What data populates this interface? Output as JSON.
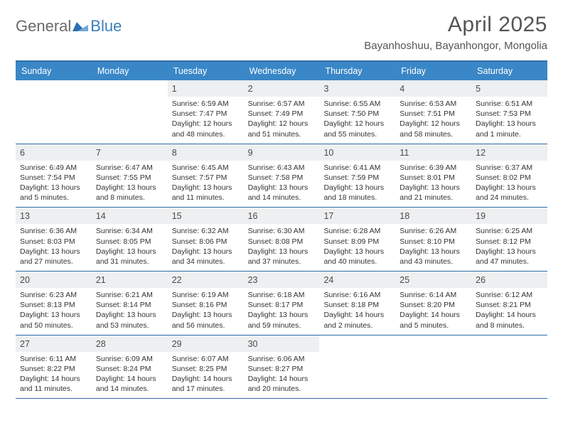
{
  "brand": {
    "word1": "General",
    "word2": "Blue",
    "tri_color": "#2a6fb0"
  },
  "title": "April 2025",
  "location": "Bayanhoshuu, Bayanhongor, Mongolia",
  "colors": {
    "header_bar": "#3a87c7",
    "header_text": "#ffffff",
    "rule": "#2f6fa8",
    "daynum_bg": "#edeff1",
    "body_text": "#333333",
    "title_text": "#555555",
    "logo_gray": "#6a6a6a",
    "logo_blue": "#3a7fbf"
  },
  "weekdays": [
    "Sunday",
    "Monday",
    "Tuesday",
    "Wednesday",
    "Thursday",
    "Friday",
    "Saturday"
  ],
  "weeks": [
    [
      {
        "n": "",
        "lines": []
      },
      {
        "n": "",
        "lines": []
      },
      {
        "n": "1",
        "lines": [
          "Sunrise: 6:59 AM",
          "Sunset: 7:47 PM",
          "Daylight: 12 hours",
          "and 48 minutes."
        ]
      },
      {
        "n": "2",
        "lines": [
          "Sunrise: 6:57 AM",
          "Sunset: 7:49 PM",
          "Daylight: 12 hours",
          "and 51 minutes."
        ]
      },
      {
        "n": "3",
        "lines": [
          "Sunrise: 6:55 AM",
          "Sunset: 7:50 PM",
          "Daylight: 12 hours",
          "and 55 minutes."
        ]
      },
      {
        "n": "4",
        "lines": [
          "Sunrise: 6:53 AM",
          "Sunset: 7:51 PM",
          "Daylight: 12 hours",
          "and 58 minutes."
        ]
      },
      {
        "n": "5",
        "lines": [
          "Sunrise: 6:51 AM",
          "Sunset: 7:53 PM",
          "Daylight: 13 hours",
          "and 1 minute."
        ]
      }
    ],
    [
      {
        "n": "6",
        "lines": [
          "Sunrise: 6:49 AM",
          "Sunset: 7:54 PM",
          "Daylight: 13 hours",
          "and 5 minutes."
        ]
      },
      {
        "n": "7",
        "lines": [
          "Sunrise: 6:47 AM",
          "Sunset: 7:55 PM",
          "Daylight: 13 hours",
          "and 8 minutes."
        ]
      },
      {
        "n": "8",
        "lines": [
          "Sunrise: 6:45 AM",
          "Sunset: 7:57 PM",
          "Daylight: 13 hours",
          "and 11 minutes."
        ]
      },
      {
        "n": "9",
        "lines": [
          "Sunrise: 6:43 AM",
          "Sunset: 7:58 PM",
          "Daylight: 13 hours",
          "and 14 minutes."
        ]
      },
      {
        "n": "10",
        "lines": [
          "Sunrise: 6:41 AM",
          "Sunset: 7:59 PM",
          "Daylight: 13 hours",
          "and 18 minutes."
        ]
      },
      {
        "n": "11",
        "lines": [
          "Sunrise: 6:39 AM",
          "Sunset: 8:01 PM",
          "Daylight: 13 hours",
          "and 21 minutes."
        ]
      },
      {
        "n": "12",
        "lines": [
          "Sunrise: 6:37 AM",
          "Sunset: 8:02 PM",
          "Daylight: 13 hours",
          "and 24 minutes."
        ]
      }
    ],
    [
      {
        "n": "13",
        "lines": [
          "Sunrise: 6:36 AM",
          "Sunset: 8:03 PM",
          "Daylight: 13 hours",
          "and 27 minutes."
        ]
      },
      {
        "n": "14",
        "lines": [
          "Sunrise: 6:34 AM",
          "Sunset: 8:05 PM",
          "Daylight: 13 hours",
          "and 31 minutes."
        ]
      },
      {
        "n": "15",
        "lines": [
          "Sunrise: 6:32 AM",
          "Sunset: 8:06 PM",
          "Daylight: 13 hours",
          "and 34 minutes."
        ]
      },
      {
        "n": "16",
        "lines": [
          "Sunrise: 6:30 AM",
          "Sunset: 8:08 PM",
          "Daylight: 13 hours",
          "and 37 minutes."
        ]
      },
      {
        "n": "17",
        "lines": [
          "Sunrise: 6:28 AM",
          "Sunset: 8:09 PM",
          "Daylight: 13 hours",
          "and 40 minutes."
        ]
      },
      {
        "n": "18",
        "lines": [
          "Sunrise: 6:26 AM",
          "Sunset: 8:10 PM",
          "Daylight: 13 hours",
          "and 43 minutes."
        ]
      },
      {
        "n": "19",
        "lines": [
          "Sunrise: 6:25 AM",
          "Sunset: 8:12 PM",
          "Daylight: 13 hours",
          "and 47 minutes."
        ]
      }
    ],
    [
      {
        "n": "20",
        "lines": [
          "Sunrise: 6:23 AM",
          "Sunset: 8:13 PM",
          "Daylight: 13 hours",
          "and 50 minutes."
        ]
      },
      {
        "n": "21",
        "lines": [
          "Sunrise: 6:21 AM",
          "Sunset: 8:14 PM",
          "Daylight: 13 hours",
          "and 53 minutes."
        ]
      },
      {
        "n": "22",
        "lines": [
          "Sunrise: 6:19 AM",
          "Sunset: 8:16 PM",
          "Daylight: 13 hours",
          "and 56 minutes."
        ]
      },
      {
        "n": "23",
        "lines": [
          "Sunrise: 6:18 AM",
          "Sunset: 8:17 PM",
          "Daylight: 13 hours",
          "and 59 minutes."
        ]
      },
      {
        "n": "24",
        "lines": [
          "Sunrise: 6:16 AM",
          "Sunset: 8:18 PM",
          "Daylight: 14 hours",
          "and 2 minutes."
        ]
      },
      {
        "n": "25",
        "lines": [
          "Sunrise: 6:14 AM",
          "Sunset: 8:20 PM",
          "Daylight: 14 hours",
          "and 5 minutes."
        ]
      },
      {
        "n": "26",
        "lines": [
          "Sunrise: 6:12 AM",
          "Sunset: 8:21 PM",
          "Daylight: 14 hours",
          "and 8 minutes."
        ]
      }
    ],
    [
      {
        "n": "27",
        "lines": [
          "Sunrise: 6:11 AM",
          "Sunset: 8:22 PM",
          "Daylight: 14 hours",
          "and 11 minutes."
        ]
      },
      {
        "n": "28",
        "lines": [
          "Sunrise: 6:09 AM",
          "Sunset: 8:24 PM",
          "Daylight: 14 hours",
          "and 14 minutes."
        ]
      },
      {
        "n": "29",
        "lines": [
          "Sunrise: 6:07 AM",
          "Sunset: 8:25 PM",
          "Daylight: 14 hours",
          "and 17 minutes."
        ]
      },
      {
        "n": "30",
        "lines": [
          "Sunrise: 6:06 AM",
          "Sunset: 8:27 PM",
          "Daylight: 14 hours",
          "and 20 minutes."
        ]
      },
      {
        "n": "",
        "lines": []
      },
      {
        "n": "",
        "lines": []
      },
      {
        "n": "",
        "lines": []
      }
    ]
  ]
}
